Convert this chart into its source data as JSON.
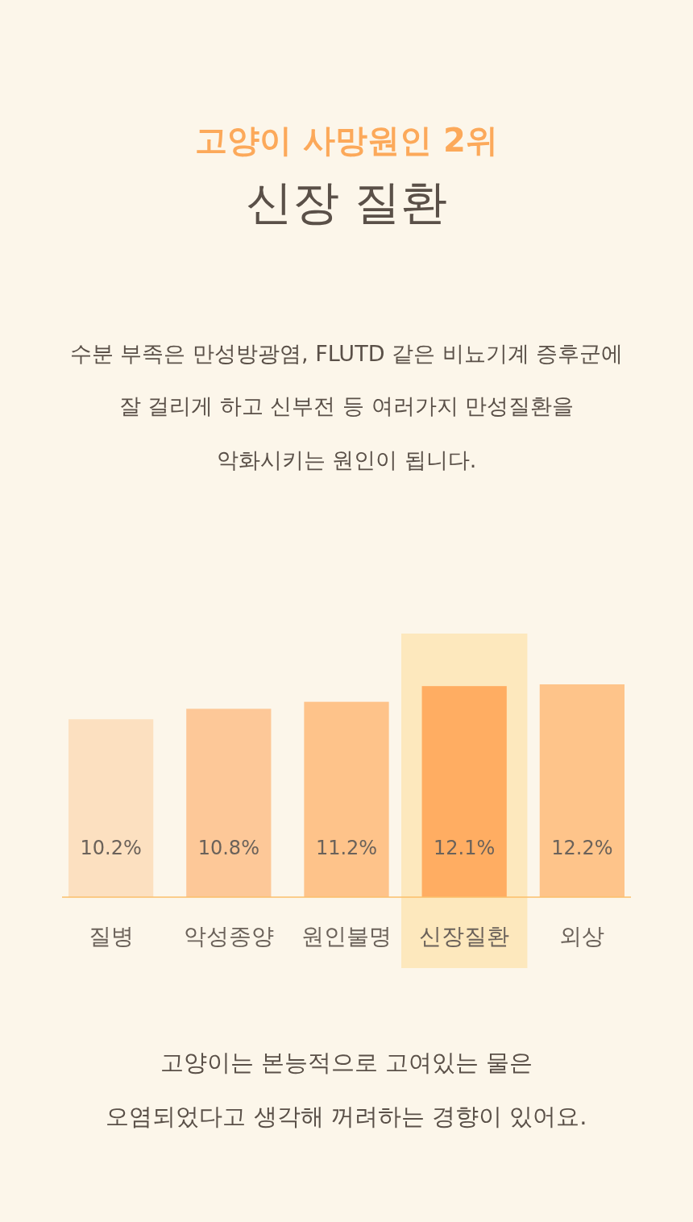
{
  "chart_data": {
    "type": "bar",
    "title": "고양이 사망원인 2위",
    "subtitle": "신장 질환",
    "annotations": [
      "수분 부족은 만성방광염, FLUTD 같은 비뇨기계 증후군에",
      "잘 걸리게 하고 신부전 등 여러가지 만성질환을",
      "악화시키는 원인이 됩니다.",
      "고양이는 본능적으로 고여있는 물은",
      "오염되었다고 생각해 꺼려하는 경향이 있어요."
    ],
    "categories": [
      "질병",
      "악성종양",
      "원인불명",
      "신장질환",
      "외상"
    ],
    "values": [
      10.2,
      10.8,
      11.2,
      12.1,
      12.2
    ],
    "colors": [
      "#fce0c0",
      "#fdc898",
      "#fec38a",
      "#ffad62",
      "#fec48a"
    ],
    "value_labels": [
      "10.2%",
      "10.8%",
      "11.2%",
      "12.1%",
      "12.2%"
    ],
    "tick_labels": "x"
  }
}
